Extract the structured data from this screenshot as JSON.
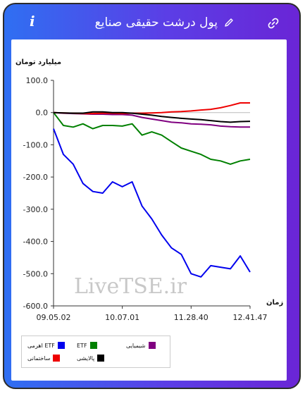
{
  "header": {
    "title": "پول درشت حقیقی صنایع",
    "info_icon": "info-icon",
    "edit_icon": "pencil-icon",
    "link_icon": "link-icon"
  },
  "watermark": "LiveTSE.ir",
  "colors": {
    "frame_gradient_start": "#2f6ff2",
    "frame_gradient_end": "#6a25d6",
    "series_blue": "#0000ee",
    "series_green": "#008000",
    "series_purple": "#800080",
    "series_red": "#ee0000",
    "series_black": "#000000"
  },
  "chart_data": {
    "type": "line",
    "ylabel": "میلیارد تومان",
    "xlabel": "زمان",
    "ylim": [
      -600,
      100
    ],
    "yticks": [
      "100.0",
      "0.0",
      "-100.0",
      "-200.0",
      "-300.0",
      "-400.0",
      "-500.0",
      "-600.0"
    ],
    "yticks_values": [
      100,
      0,
      -100,
      -200,
      -300,
      -400,
      -500,
      -600
    ],
    "xticks": [
      "09.05.02",
      "10.07.01",
      "11.28.40",
      "12.41.47"
    ],
    "x": [
      0,
      5,
      10,
      15,
      20,
      25,
      30,
      35,
      40,
      45,
      50,
      55,
      60,
      65,
      70,
      75,
      80,
      85,
      90,
      95,
      100
    ],
    "grid": false,
    "legend_position": "bottom-left",
    "series": [
      {
        "name": "ETF اهرمی",
        "color": "#0000ee",
        "values": [
          -50,
          -130,
          -160,
          -220,
          -245,
          -250,
          -215,
          -230,
          -215,
          -290,
          -330,
          -380,
          -420,
          -440,
          -500,
          -510,
          -475,
          -480,
          -485,
          -445,
          -495
        ]
      },
      {
        "name": "ETF",
        "color": "#008000",
        "values": [
          0,
          -40,
          -45,
          -35,
          -50,
          -40,
          -40,
          -42,
          -35,
          -70,
          -60,
          -70,
          -90,
          -110,
          -120,
          -130,
          -145,
          -150,
          -160,
          -150,
          -145
        ]
      },
      {
        "name": "شیمیایی",
        "color": "#800080",
        "values": [
          0,
          -2,
          -3,
          -4,
          -5,
          -5,
          -6,
          -6,
          -8,
          -15,
          -20,
          -25,
          -30,
          -32,
          -35,
          -36,
          -38,
          -42,
          -44,
          -45,
          -45
        ]
      },
      {
        "name": "ساختمانی",
        "color": "#ee0000",
        "values": [
          0,
          -1,
          -2,
          -3,
          -3,
          -2,
          -2,
          -3,
          -2,
          -2,
          -1,
          0,
          2,
          3,
          5,
          8,
          10,
          15,
          22,
          30,
          30
        ]
      },
      {
        "name": "پالایشی",
        "color": "#000000",
        "values": [
          0,
          -1,
          -2,
          -2,
          2,
          2,
          0,
          0,
          -2,
          -5,
          -8,
          -12,
          -15,
          -18,
          -20,
          -22,
          -25,
          -28,
          -30,
          -28,
          -27
        ]
      }
    ]
  }
}
